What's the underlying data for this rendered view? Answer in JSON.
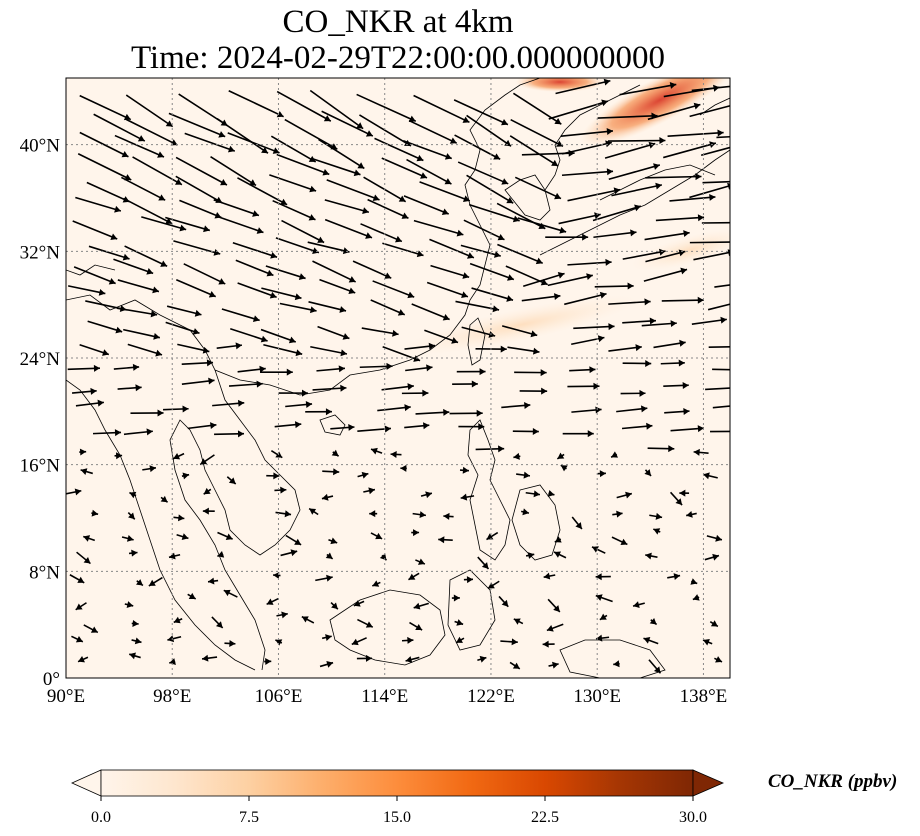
{
  "title_line1": "CO_NKR at 4km",
  "title_line2": "Time: 2024-02-29T22:00:00.000000000",
  "map": {
    "lon_range": [
      90,
      140
    ],
    "lat_range": [
      0,
      45
    ],
    "lon_ticks": [
      {
        "value": 90,
        "label": "90°E"
      },
      {
        "value": 98,
        "label": "98°E"
      },
      {
        "value": 106,
        "label": "106°E"
      },
      {
        "value": 114,
        "label": "114°E"
      },
      {
        "value": 122,
        "label": "122°E"
      },
      {
        "value": 130,
        "label": "130°E"
      },
      {
        "value": 138,
        "label": "138°E"
      }
    ],
    "lat_ticks": [
      {
        "value": 0,
        "label": "0°"
      },
      {
        "value": 8,
        "label": "8°N"
      },
      {
        "value": 16,
        "label": "16°N"
      },
      {
        "value": 24,
        "label": "24°N"
      },
      {
        "value": 32,
        "label": "32°N"
      },
      {
        "value": 40,
        "label": "40°N"
      }
    ],
    "gridlines": true,
    "background_color": "#fff5eb",
    "plume_color": "#d7301f",
    "coastline_color": "#000000"
  },
  "colorbar": {
    "label": "CO_NKR (ppbv)",
    "min": 0,
    "max": 30,
    "extend": "both",
    "ticks": [
      {
        "value": 0,
        "label": "0.0"
      },
      {
        "value": 7.5,
        "label": "7.5"
      },
      {
        "value": 15,
        "label": "15.0"
      },
      {
        "value": 22.5,
        "label": "22.5"
      },
      {
        "value": 30,
        "label": "30.0"
      }
    ],
    "colors": [
      "#fff5eb",
      "#fee6ce",
      "#fdd0a2",
      "#fdae6b",
      "#fd8d3c",
      "#f16913",
      "#d94801",
      "#a63603",
      "#7f2704"
    ]
  }
}
